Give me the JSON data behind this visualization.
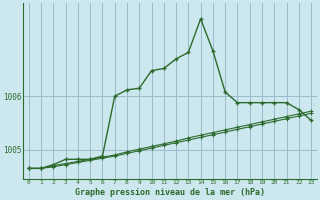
{
  "xlabel": "Graphe pression niveau de la mer (hPa)",
  "bg_color": "#cce8ee",
  "grid_color": "#99bbcc",
  "line_color": "#2d6a2d",
  "line1_x": [
    0,
    1,
    2,
    3,
    4,
    5,
    6,
    7,
    8,
    9,
    10,
    11,
    12,
    13,
    14,
    15,
    16,
    17,
    18,
    19,
    20,
    21,
    22,
    23
  ],
  "line1_y": [
    1004.65,
    1004.65,
    1004.72,
    1004.82,
    1004.82,
    1004.82,
    1004.88,
    1006.0,
    1006.12,
    1006.15,
    1006.48,
    1006.52,
    1006.7,
    1006.82,
    1007.45,
    1006.85,
    1006.08,
    1005.88,
    1005.88,
    1005.88,
    1005.88,
    1005.88,
    1005.75,
    1005.55
  ],
  "line2_x": [
    0,
    1,
    2,
    3,
    4,
    5,
    6,
    7,
    8,
    9,
    10,
    11,
    12,
    13,
    14,
    15,
    16,
    17,
    18,
    19,
    20,
    21,
    22,
    23
  ],
  "line2_y": [
    1004.65,
    1004.65,
    1004.68,
    1004.72,
    1004.76,
    1004.8,
    1004.84,
    1004.88,
    1004.93,
    1004.98,
    1005.03,
    1005.08,
    1005.13,
    1005.18,
    1005.23,
    1005.28,
    1005.33,
    1005.38,
    1005.43,
    1005.48,
    1005.53,
    1005.58,
    1005.63,
    1005.68
  ],
  "line3_x": [
    0,
    1,
    2,
    3,
    4,
    5,
    6,
    7,
    8,
    9,
    10,
    11,
    12,
    13,
    14,
    15,
    16,
    17,
    18,
    19,
    20,
    21,
    22,
    23
  ],
  "line3_y": [
    1004.65,
    1004.65,
    1004.7,
    1004.74,
    1004.78,
    1004.82,
    1004.86,
    1004.9,
    1004.96,
    1005.01,
    1005.06,
    1005.11,
    1005.16,
    1005.22,
    1005.27,
    1005.32,
    1005.37,
    1005.42,
    1005.47,
    1005.52,
    1005.57,
    1005.62,
    1005.67,
    1005.72
  ],
  "ylim": [
    1004.45,
    1007.75
  ],
  "yticks": [
    1005.0,
    1006.0
  ],
  "xticks": [
    0,
    1,
    2,
    3,
    4,
    5,
    6,
    7,
    8,
    9,
    10,
    11,
    12,
    13,
    14,
    15,
    16,
    17,
    18,
    19,
    20,
    21,
    22,
    23
  ],
  "figsize": [
    3.2,
    2.0
  ],
  "dpi": 100
}
